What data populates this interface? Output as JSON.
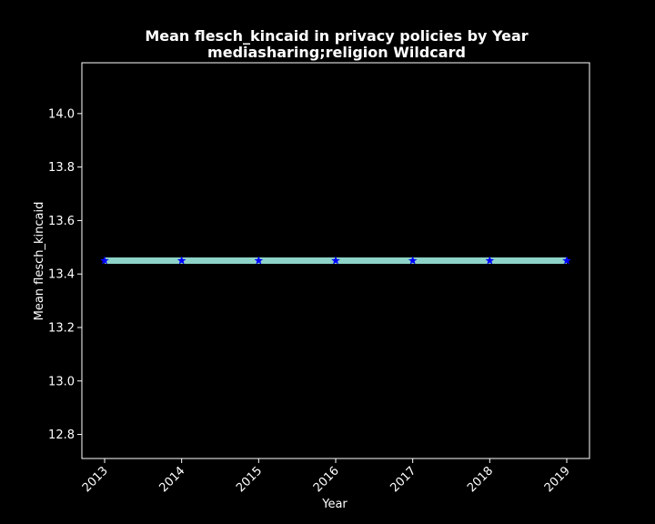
{
  "chart_data": {
    "type": "line",
    "title": "Mean flesch_kincaid in privacy policies by Year",
    "subtitle": "mediasharing;religion Wildcard",
    "xlabel": "Year",
    "ylabel": "Mean flesch_kincaid",
    "x": [
      "2013",
      "2014",
      "2015",
      "2016",
      "2017",
      "2018",
      "2019"
    ],
    "series": [
      {
        "values": [
          13.45,
          13.45,
          13.45,
          13.45,
          13.45,
          13.45,
          13.45
        ],
        "line_color": "#8dd3c7",
        "marker": "star",
        "marker_color": "#0000ff"
      }
    ],
    "yticks": [
      "12.8",
      "13.0",
      "13.2",
      "13.4",
      "13.6",
      "13.8",
      "14.0"
    ],
    "ylim": [
      12.71,
      14.19
    ],
    "grid": false,
    "background": "#000000",
    "text_color": "#ffffff"
  }
}
